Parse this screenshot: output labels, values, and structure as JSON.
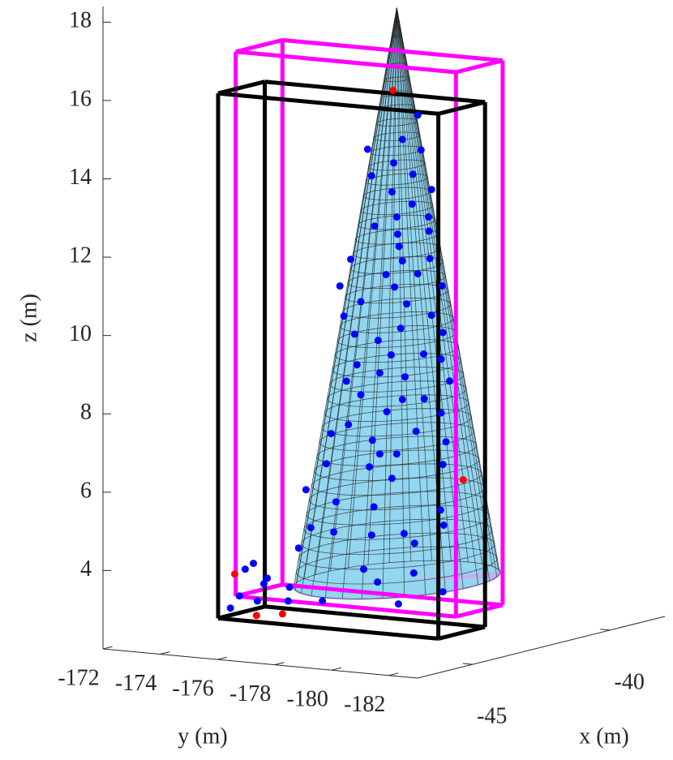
{
  "chart_data": {
    "type": "scatter3d",
    "xlabel": "x (m)",
    "ylabel": "y (m)",
    "zlabel": "z (m)",
    "xlim": [
      -47,
      -38
    ],
    "ylim": [
      -183,
      -172
    ],
    "zlim": [
      2,
      18.4
    ],
    "xticks": [
      -45,
      -40
    ],
    "yticks": [
      -172,
      -174,
      -176,
      -178,
      -180,
      -182
    ],
    "zticks": [
      4,
      6,
      8,
      10,
      12,
      14,
      16,
      18
    ],
    "boxes": [
      {
        "color": "#ff00ff",
        "x": [
          -45.5,
          -43.8
        ],
        "y": [
          -182.9,
          -175.2
        ],
        "z": [
          3.3,
          17.2
        ]
      },
      {
        "color": "#000000",
        "x": [
          -45.1,
          -43.4
        ],
        "y": [
          -181.9,
          -174.2
        ],
        "z": [
          2.6,
          16.0
        ]
      }
    ],
    "cone": {
      "x": -42.99,
      "y": -178.42,
      "base_z": 3.5,
      "apex_z": 18.1,
      "radius": 2.6,
      "color": "#7fd0ee",
      "mesh_color": "#000000",
      "base_color": "#b9a4ee"
    },
    "series": [
      {
        "color": "#0000ff",
        "x": [
          -42.78,
          -42.93,
          -43.28,
          -42.75,
          -43.02,
          -42.83,
          -43.24,
          -43.04,
          -42.64,
          -42.84,
          -42.99,
          -42.67,
          -43.21,
          -42.98,
          -42.67,
          -42.97,
          -42.66,
          -43.45,
          -42.93,
          -43.1,
          -42.78,
          -43.56,
          -43.01,
          -42.54,
          -42.89,
          -43.35,
          -43.52,
          -42.64,
          -42.95,
          -43.41,
          -42.53,
          -43.18,
          -42.72,
          -43.05,
          -43.39,
          -42.55,
          -43.16,
          -43.49,
          -42.91,
          -42.46,
          -43.35,
          -42.93,
          -42.72,
          -43.09,
          -42.55,
          -43.47,
          -42.8,
          -43.64,
          -43.23,
          -42.5,
          -42.99,
          -43.16,
          -43.69,
          -43.26,
          -42.53,
          -43.9,
          -43.04,
          -43.6,
          -42.55,
          -43.22,
          -43.85,
          -43.62,
          -43.24,
          -42.92,
          -43.97,
          -42.52,
          -42.81,
          -43.32,
          -43.18,
          -42.82,
          -43.73,
          -42.97,
          -42.53,
          -44.28,
          -44.42,
          -44.5,
          -44.32,
          -44.56,
          -44.38,
          -44.65,
          -44.06,
          -44.07
        ],
        "y": [
          -178.95,
          -178.56,
          -177.68,
          -179.04,
          -178.34,
          -178.83,
          -177.78,
          -178.3,
          -179.3,
          -178.81,
          -178.42,
          -179.22,
          -177.86,
          -178.44,
          -179.24,
          -178.48,
          -179.26,
          -177.25,
          -178.56,
          -178.15,
          -178.95,
          -176.98,
          -178.36,
          -179.57,
          -178.67,
          -177.51,
          -177.08,
          -179.3,
          -178.52,
          -177.35,
          -179.59,
          -177.95,
          -179.1,
          -178.28,
          -177.41,
          -179.55,
          -177.99,
          -177.14,
          -178.63,
          -179.76,
          -177.51,
          -178.56,
          -179.12,
          -178.17,
          -179.55,
          -177.19,
          -178.91,
          -176.75,
          -177.8,
          -179.67,
          -178.42,
          -177.99,
          -176.63,
          -177.72,
          -179.59,
          -176.12,
          -178.3,
          -176.88,
          -179.53,
          -177.84,
          -176.24,
          -176.82,
          -177.78,
          -178.61,
          -175.93,
          -179.61,
          -178.87,
          -177.58,
          -177.93,
          -178.85,
          -176.53,
          -178.46,
          -179.59,
          -175.13,
          -174.78,
          -174.57,
          -175.05,
          -174.43,
          -174.88,
          -174.2,
          -175.7,
          -175.66
        ],
        "z": [
          15.36,
          14.74,
          14.49,
          14.47,
          14.14,
          13.85,
          13.81,
          13.4,
          13.46,
          13.09,
          12.76,
          12.76,
          12.53,
          12.32,
          12.4,
          12.01,
          11.7,
          11.68,
          11.64,
          11.29,
          11.31,
          11.0,
          10.97,
          11.0,
          10.54,
          10.6,
          10.23,
          10.25,
          9.92,
          9.77,
          9.81,
          9.61,
          9.26,
          9.24,
          8.99,
          9.13,
          8.78,
          8.57,
          8.68,
          8.57,
          8.22,
          8.1,
          8.12,
          7.79,
          7.76,
          7.46,
          7.29,
          7.23,
          7.06,
          7.02,
          6.71,
          6.71,
          6.46,
          6.38,
          6.44,
          5.8,
          6.09,
          5.49,
          5.28,
          5.36,
          4.83,
          4.72,
          4.64,
          4.68,
          4.31,
          4.89,
          4.43,
          3.77,
          3.44,
          3.67,
          2.96,
          2.88,
          3.19,
          3.54,
          3.92,
          3.77,
          3.4,
          3.09,
          2.96,
          2.78,
          3.31,
          2.96
        ]
      },
      {
        "color": "#ff0000",
        "x": [
          -43.03,
          -42.33,
          -44.61,
          -44.39,
          -44.13
        ],
        "y": [
          -178.32,
          -180.11,
          -174.31,
          -174.86,
          -175.52
        ],
        "z": [
          15.99,
          6.05,
          3.65,
          2.59,
          2.63
        ]
      }
    ]
  }
}
